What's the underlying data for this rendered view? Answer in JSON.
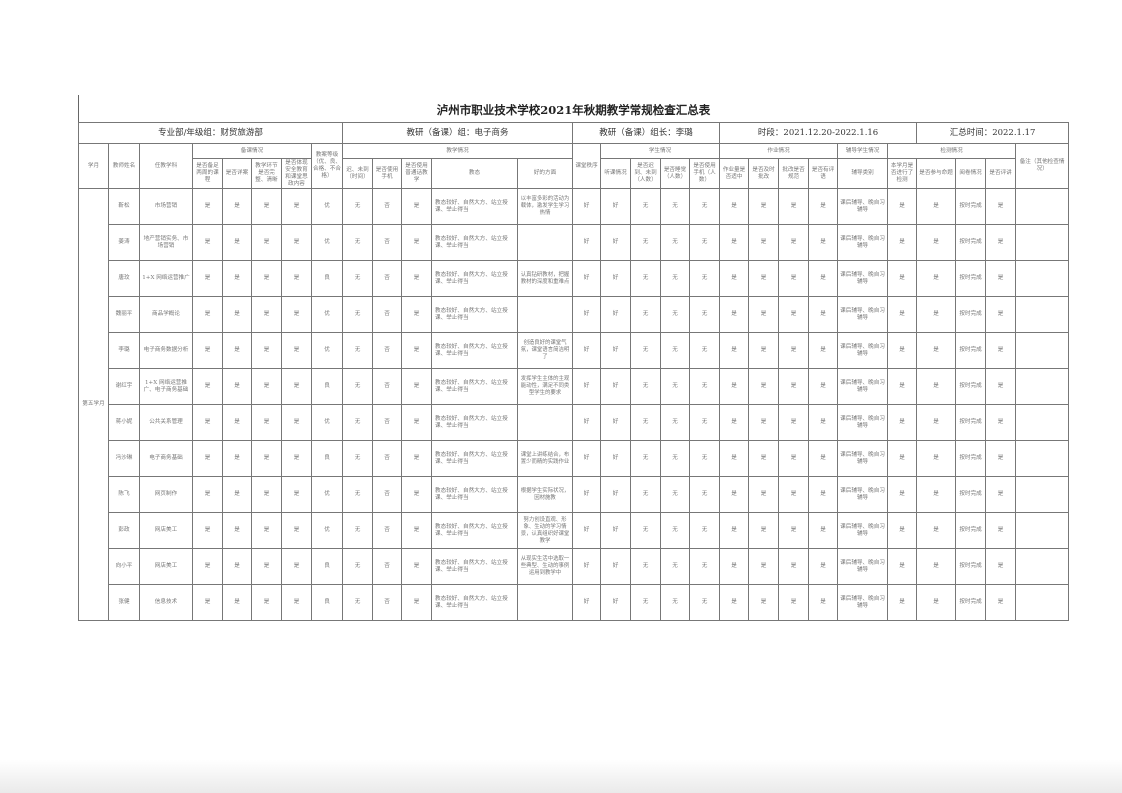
{
  "title": "泸州市职业技术学校2021年秋期教学常规检查汇总表",
  "info": {
    "department": "专业部/年级组：财贸旅游部",
    "group": "教研（备课）组：电子商务",
    "leader": "教研（备课）组长：李璐",
    "period": "时段：2021.12.20-2022.1.16",
    "summary_time": "汇总时间：2022.1.17"
  },
  "headers": {
    "month": "学月",
    "teacher": "教师姓名",
    "subject": "任教学科",
    "prep_group": "备课情况",
    "prep": [
      "是否备足两周的课程",
      "是否详案",
      "教学环节是否完整、清晰",
      "是否体现安全教育和课堂思政内容"
    ],
    "plan_grade": "教案等级（优、良、合格、不合格）",
    "teach_group": "教学情况",
    "teach": [
      "迟、未到（时间）",
      "是否使用手机",
      "是否使用普通话教学",
      "教态",
      "好的方面"
    ],
    "order": "课堂秩序",
    "student_group": "学生情况",
    "student": [
      "听课情况",
      "是否迟到、未到（人数）",
      "是否睡觉（人数）",
      "是否使用手机（人数）"
    ],
    "homework_group": "作业情况",
    "homework": [
      "作业量是否适中",
      "是否及时批改",
      "批改是否规范",
      "是否有评语"
    ],
    "tutor_group": "辅导学生情况",
    "tutor": "辅导类别",
    "test_group": "检测情况",
    "test": [
      "本学月是否进行了检测",
      "是否参与命题",
      "阅卷情况",
      "是否评讲"
    ],
    "remark": "备注（其他检查情况）"
  },
  "month_label": "第五学月",
  "rows": [
    {
      "teacher": "靳松",
      "subject": "市场营销",
      "prep": [
        "是",
        "是",
        "是",
        "是"
      ],
      "grade": "优",
      "teach": [
        "无",
        "否",
        "是"
      ],
      "manner": "教态较好、自然大方、站立授课、举止得当",
      "good": "以丰富多彩的活动为载体，激发学生学习热情",
      "order": "好",
      "student": [
        "好",
        "无",
        "无",
        "无"
      ],
      "homework": [
        "是",
        "是",
        "是",
        "是"
      ],
      "tutor": "课后辅导、晚自习辅导",
      "test": [
        "是",
        "是",
        "按时完成",
        "是"
      ],
      "remark": ""
    },
    {
      "teacher": "姜涛",
      "subject": "地产营销实务、市场营销",
      "prep": [
        "是",
        "是",
        "是",
        "是"
      ],
      "grade": "优",
      "teach": [
        "无",
        "否",
        "是"
      ],
      "manner": "教态较好、自然大方、站立授课、举止得当",
      "good": "",
      "order": "好",
      "student": [
        "好",
        "无",
        "无",
        "无"
      ],
      "homework": [
        "是",
        "是",
        "是",
        "是"
      ],
      "tutor": "课后辅导、晚自习辅导",
      "test": [
        "是",
        "是",
        "按时完成",
        "是"
      ],
      "remark": ""
    },
    {
      "teacher": "唐玟",
      "subject": "1+X 网络运营推广",
      "prep": [
        "是",
        "是",
        "是",
        "是"
      ],
      "grade": "良",
      "teach": [
        "无",
        "否",
        "是"
      ],
      "manner": "教态较好、自然大方、站立授课、举止得当",
      "good": "认真钻研教材，把握教材的深度和重难点",
      "order": "好",
      "student": [
        "好",
        "无",
        "无",
        "无"
      ],
      "homework": [
        "是",
        "是",
        "是",
        "是"
      ],
      "tutor": "课后辅导、晚自习辅导",
      "test": [
        "是",
        "是",
        "按时完成",
        "是"
      ],
      "remark": ""
    },
    {
      "teacher": "魏丽平",
      "subject": "商品学概论",
      "prep": [
        "是",
        "是",
        "是",
        "是"
      ],
      "grade": "优",
      "teach": [
        "无",
        "否",
        "是"
      ],
      "manner": "教态较好、自然大方、站立授课、举止得当",
      "good": "",
      "order": "好",
      "student": [
        "好",
        "无",
        "无",
        "无"
      ],
      "homework": [
        "是",
        "是",
        "是",
        "是"
      ],
      "tutor": "课后辅导、晚自习辅导",
      "test": [
        "是",
        "是",
        "按时完成",
        "是"
      ],
      "remark": ""
    },
    {
      "teacher": "李璐",
      "subject": "电子商务数据分析",
      "prep": [
        "是",
        "是",
        "是",
        "是"
      ],
      "grade": "优",
      "teach": [
        "无",
        "否",
        "是"
      ],
      "manner": "教态较好、自然大方、站立授课、举止得当",
      "good": "创造良好的课堂气氛，课堂语言简洁明了",
      "order": "好",
      "student": [
        "好",
        "无",
        "无",
        "无"
      ],
      "homework": [
        "是",
        "是",
        "是",
        "是"
      ],
      "tutor": "课后辅导、晚自习辅导",
      "test": [
        "是",
        "是",
        "按时完成",
        "是"
      ],
      "remark": ""
    },
    {
      "teacher": "谢红宇",
      "subject": "1+X 网络运营推广、电子商务基础",
      "prep": [
        "是",
        "是",
        "是",
        "是"
      ],
      "grade": "良",
      "teach": [
        "无",
        "否",
        "是"
      ],
      "manner": "教态较好、自然大方、站立授课、举止得当",
      "good": "发挥学生主体的主观能动性，满足不同类型学生的要求",
      "order": "好",
      "student": [
        "好",
        "无",
        "无",
        "无"
      ],
      "homework": [
        "是",
        "是",
        "是",
        "是"
      ],
      "tutor": "课后辅导、晚自习辅导",
      "test": [
        "是",
        "是",
        "按时完成",
        "是"
      ],
      "remark": ""
    },
    {
      "teacher": "蒋小妮",
      "subject": "公共关系管理",
      "prep": [
        "是",
        "是",
        "是",
        "是"
      ],
      "grade": "优",
      "teach": [
        "无",
        "否",
        "是"
      ],
      "manner": "教态较好、自然大方、站立授课、举止得当",
      "good": "",
      "order": "好",
      "student": [
        "好",
        "无",
        "无",
        "无"
      ],
      "homework": [
        "是",
        "是",
        "是",
        "是"
      ],
      "tutor": "课后辅导、晚自习辅导",
      "test": [
        "是",
        "是",
        "按时完成",
        "是"
      ],
      "remark": ""
    },
    {
      "teacher": "冯沙琳",
      "subject": "电子商务基础",
      "prep": [
        "是",
        "是",
        "是",
        "是"
      ],
      "grade": "良",
      "teach": [
        "无",
        "否",
        "是"
      ],
      "manner": "教态较好、自然大方、站立授课、举止得当",
      "good": "课堂上讲练结合，布置少而精的实践作业",
      "order": "好",
      "student": [
        "好",
        "无",
        "无",
        "无"
      ],
      "homework": [
        "是",
        "是",
        "是",
        "是"
      ],
      "tutor": "课后辅导、晚自习辅导",
      "test": [
        "是",
        "是",
        "按时完成",
        "是"
      ],
      "remark": ""
    },
    {
      "teacher": "陈飞",
      "subject": "网页制作",
      "prep": [
        "是",
        "是",
        "是",
        "是"
      ],
      "grade": "优",
      "teach": [
        "无",
        "否",
        "是"
      ],
      "manner": "教态较好、自然大方、站立授课、举止得当",
      "good": "根据学生实际状况，因材施教",
      "order": "好",
      "student": [
        "好",
        "无",
        "无",
        "无"
      ],
      "homework": [
        "是",
        "是",
        "是",
        "是"
      ],
      "tutor": "课后辅导、晚自习辅导",
      "test": [
        "是",
        "是",
        "按时完成",
        "是"
      ],
      "remark": ""
    },
    {
      "teacher": "彭政",
      "subject": "网店美工",
      "prep": [
        "是",
        "是",
        "是",
        "是"
      ],
      "grade": "优",
      "teach": [
        "无",
        "否",
        "是"
      ],
      "manner": "教态较好、自然大方、站立授课、举止得当",
      "good": "努力创设直观、形象、生动的学习情景，认真组织好课堂教学",
      "order": "好",
      "student": [
        "好",
        "无",
        "无",
        "无"
      ],
      "homework": [
        "是",
        "是",
        "是",
        "是"
      ],
      "tutor": "课后辅导、晚自习辅导",
      "test": [
        "是",
        "是",
        "按时完成",
        "是"
      ],
      "remark": ""
    },
    {
      "teacher": "向小平",
      "subject": "网店美工",
      "prep": [
        "是",
        "是",
        "是",
        "是"
      ],
      "grade": "良",
      "teach": [
        "无",
        "否",
        "是"
      ],
      "manner": "教态较好、自然大方、站立授课、举止得当",
      "good": "从现实生活中选取一些典型、生动的事例运用到教学中",
      "order": "好",
      "student": [
        "好",
        "无",
        "无",
        "无"
      ],
      "homework": [
        "是",
        "是",
        "是",
        "是"
      ],
      "tutor": "课后辅导、晚自习辅导",
      "test": [
        "是",
        "是",
        "按时完成",
        "是"
      ],
      "remark": ""
    },
    {
      "teacher": "张健",
      "subject": "信息技术",
      "prep": [
        "是",
        "是",
        "是",
        "是"
      ],
      "grade": "良",
      "teach": [
        "无",
        "否",
        "是"
      ],
      "manner": "教态较好、自然大方、站立授课、举止得当",
      "good": "",
      "order": "好",
      "student": [
        "好",
        "无",
        "无",
        "无"
      ],
      "homework": [
        "是",
        "是",
        "是",
        "是"
      ],
      "tutor": "课后辅导、晚自习辅导",
      "test": [
        "是",
        "是",
        "按时完成",
        "是"
      ],
      "remark": ""
    }
  ]
}
